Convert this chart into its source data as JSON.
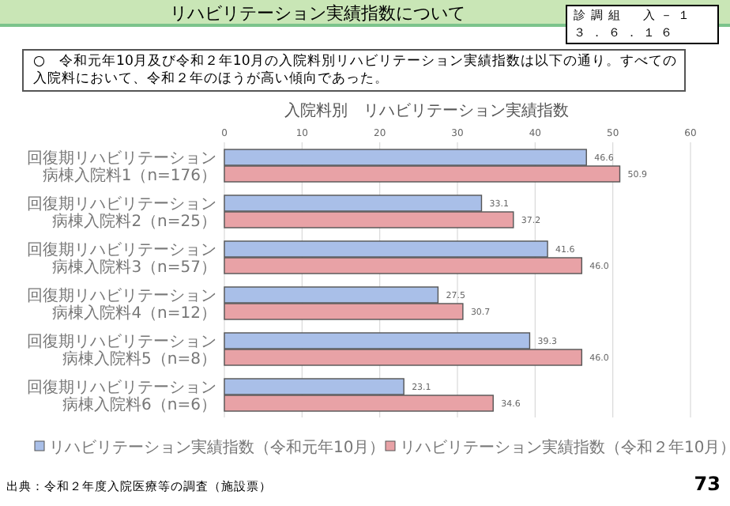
{
  "chart_data": {
    "type": "bar",
    "orientation": "horizontal",
    "title": "入院料別　リハビリテーション実績指数",
    "categories": [
      "回復期リハビリテーション病棟入院料1（n=176）",
      "回復期リハビリテーション病棟入院料2（n=25）",
      "回復期リハビリテーション病棟入院料3（n=57）",
      "回復期リハビリテーション病棟入院料4（n=12）",
      "回復期リハビリテーション病棟入院料5（n=8）",
      "回復期リハビリテーション病棟入院料6（n=6）"
    ],
    "series": [
      {
        "name": "リハビリテーション実績指数（令和元年10月）",
        "color": "#a9bfe8",
        "values": [
          46.6,
          33.1,
          41.6,
          27.5,
          39.3,
          23.1
        ],
        "value_labels": [
          "46.6",
          "33.1",
          "41.6",
          "27.5",
          "39.3",
          "23.1"
        ]
      },
      {
        "name": "リハビリテーション実績指数（令和２年10月）",
        "color": "#e8a2a6",
        "values": [
          50.9,
          37.2,
          46.0,
          30.7,
          46.0,
          34.6
        ],
        "value_labels": [
          "50.9",
          "37.2",
          "46.0",
          "30.7",
          "46.0",
          "34.6"
        ]
      }
    ],
    "xlim": [
      0,
      60
    ],
    "xticks": [
      0,
      10,
      20,
      30,
      40,
      50,
      60
    ],
    "grid": "x",
    "legend": "bottom",
    "annotations": [
      "リハビリテーション実績指数について",
      "診調組　入－１",
      "３．６．１６",
      "○　令和元年10月及び令和２年10月の入院料別リハビリテーション実績指数は以下の通り。すべての入院料において、令和２年のほうが高い傾向であった。",
      "出典：令和２年度入院医療等の調査（施設票）",
      "73"
    ]
  }
}
